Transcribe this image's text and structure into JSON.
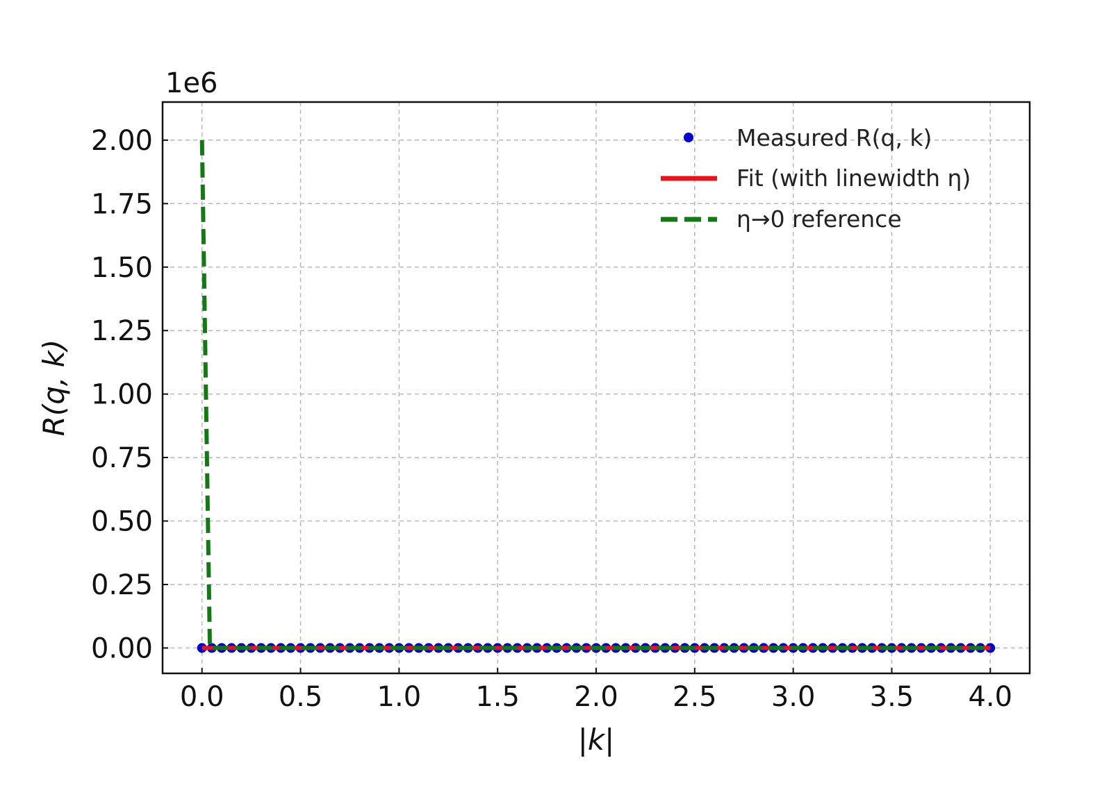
{
  "chart_data": {
    "type": "line",
    "title": "",
    "xlabel": "|k|",
    "ylabel": "R(q, k)",
    "y_offset_label": "1e6",
    "xlim": [
      -0.2,
      4.2
    ],
    "ylim": [
      -100000,
      2150000
    ],
    "x_ticks": [
      0.0,
      0.5,
      1.0,
      1.5,
      2.0,
      2.5,
      3.0,
      3.5,
      4.0
    ],
    "x_tick_labels": [
      "0.0",
      "0.5",
      "1.0",
      "1.5",
      "2.0",
      "2.5",
      "3.0",
      "3.5",
      "4.0"
    ],
    "y_ticks": [
      0,
      250000,
      500000,
      750000,
      1000000,
      1250000,
      1500000,
      1750000,
      2000000
    ],
    "y_tick_labels": [
      "0.00",
      "0.25",
      "0.50",
      "0.75",
      "1.00",
      "1.25",
      "1.50",
      "1.75",
      "2.00"
    ],
    "grid": true,
    "legend_position": "top-right",
    "series": [
      {
        "name": "Measured R(q, k)",
        "style": "markers",
        "color": "#0000cc",
        "x": [
          0.0,
          0.05,
          0.1,
          0.15,
          0.2,
          0.25,
          0.3,
          0.35,
          0.4,
          0.45,
          0.5,
          0.55,
          0.6,
          0.65,
          0.7,
          0.75,
          0.8,
          0.85,
          0.9,
          0.95,
          1.0,
          1.05,
          1.1,
          1.15,
          1.2,
          1.25,
          1.3,
          1.35,
          1.4,
          1.45,
          1.5,
          1.55,
          1.6,
          1.65,
          1.7,
          1.75,
          1.8,
          1.85,
          1.9,
          1.95,
          2.0,
          2.05,
          2.1,
          2.15,
          2.2,
          2.25,
          2.3,
          2.35,
          2.4,
          2.45,
          2.5,
          2.55,
          2.6,
          2.65,
          2.7,
          2.75,
          2.8,
          2.85,
          2.9,
          2.95,
          3.0,
          3.05,
          3.1,
          3.15,
          3.2,
          3.25,
          3.3,
          3.35,
          3.4,
          3.45,
          3.5,
          3.55,
          3.6,
          3.65,
          3.7,
          3.75,
          3.8,
          3.85,
          3.9,
          3.95,
          4.0
        ],
        "y": [
          0,
          0,
          0,
          0,
          0,
          0,
          0,
          0,
          0,
          0,
          0,
          0,
          0,
          0,
          0,
          0,
          0,
          0,
          0,
          0,
          0,
          0,
          0,
          0,
          0,
          0,
          0,
          0,
          0,
          0,
          0,
          0,
          0,
          0,
          0,
          0,
          0,
          0,
          0,
          0,
          0,
          0,
          0,
          0,
          0,
          0,
          0,
          0,
          0,
          0,
          0,
          0,
          0,
          0,
          0,
          0,
          0,
          0,
          0,
          0,
          0,
          0,
          0,
          0,
          0,
          0,
          0,
          0,
          0,
          0,
          0,
          0,
          0,
          0,
          0,
          0,
          0,
          0,
          0,
          0,
          0
        ]
      },
      {
        "name": "Fit (with linewidth η)",
        "style": "solid",
        "color": "#e8141c",
        "x": [
          0.0,
          4.0
        ],
        "y": [
          0,
          0
        ]
      },
      {
        "name": "η→0 reference",
        "style": "dashed",
        "color": "#147814",
        "x": [
          0.0,
          0.01,
          0.02,
          0.03,
          0.04,
          4.0
        ],
        "y": [
          2000000,
          1500000,
          1000000,
          500000,
          0,
          0
        ]
      }
    ],
    "legend": [
      {
        "label": "Measured R(q, k)",
        "marker": "dot",
        "color": "#0000cc"
      },
      {
        "label": "Fit (with linewidth η)",
        "marker": "solid-line",
        "color": "#e8141c"
      },
      {
        "label": "η→0 reference",
        "marker": "dashed-line",
        "color": "#147814"
      }
    ]
  }
}
